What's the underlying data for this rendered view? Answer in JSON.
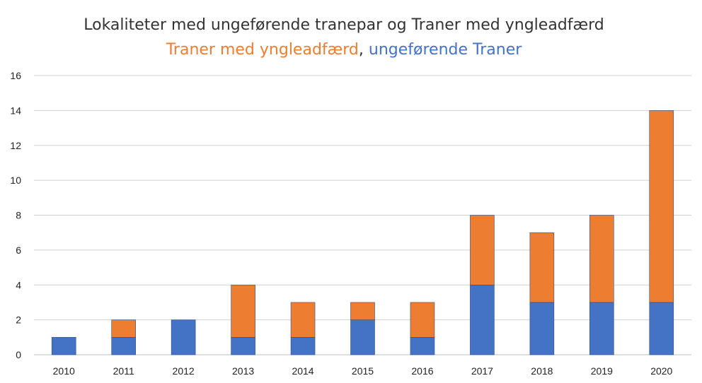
{
  "chart_data": {
    "type": "bar",
    "stacked": true,
    "title": "Lokaliteter med ungeførende tranepar og Traner med yngleadfærd",
    "subtitle_parts": [
      {
        "text": "Traner med yngleadfærd",
        "color": "#ED7D31"
      },
      {
        "text": ", ",
        "color": "#333333"
      },
      {
        "text": "ungeførende Traner",
        "color": "#4472C4"
      }
    ],
    "categories": [
      "2010",
      "2011",
      "2012",
      "2013",
      "2014",
      "2015",
      "2016",
      "2017",
      "2018",
      "2019",
      "2020"
    ],
    "series": [
      {
        "values": [
          1,
          1,
          2,
          1,
          1,
          2,
          1,
          4,
          3,
          3,
          3
        ],
        "color": "#4472C4"
      },
      {
        "values": [
          0,
          1,
          0,
          3,
          2,
          1,
          2,
          4,
          4,
          5,
          11
        ],
        "color": "#ED7D31"
      }
    ],
    "ylim": [
      0,
      16
    ],
    "yticks": [
      0,
      2,
      4,
      6,
      8,
      10,
      12,
      14,
      16
    ],
    "grid": true,
    "legend": "none"
  }
}
